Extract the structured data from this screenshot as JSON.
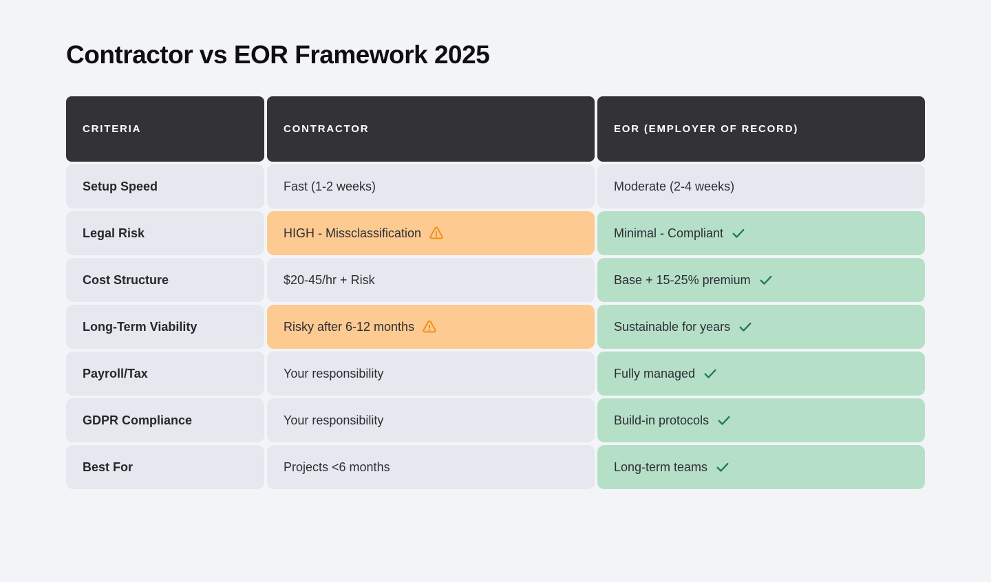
{
  "page": {
    "title": "Contractor vs EOR Framework 2025"
  },
  "table": {
    "columns": [
      {
        "label": "CRITERIA"
      },
      {
        "label": "CONTRACTOR"
      },
      {
        "label": "EOR (EMPLOYER OF RECORD)"
      }
    ],
    "rows": [
      {
        "criteria": "Setup Speed",
        "contractor": {
          "text": "Fast (1-2 weeks)",
          "status": "neutral"
        },
        "eor": {
          "text": "Moderate (2-4 weeks)",
          "status": "neutral"
        }
      },
      {
        "criteria": "Legal Risk",
        "contractor": {
          "text": "HIGH - Missclassification",
          "status": "warning"
        },
        "eor": {
          "text": "Minimal - Compliant",
          "status": "positive"
        }
      },
      {
        "criteria": "Cost Structure",
        "contractor": {
          "text": "$20-45/hr + Risk",
          "status": "neutral"
        },
        "eor": {
          "text": "Base + 15-25% premium",
          "status": "positive"
        }
      },
      {
        "criteria": "Long-Term Viability",
        "contractor": {
          "text": "Risky after 6-12 months",
          "status": "warning"
        },
        "eor": {
          "text": "Sustainable for years",
          "status": "positive"
        }
      },
      {
        "criteria": "Payroll/Tax",
        "contractor": {
          "text": "Your responsibility",
          "status": "neutral"
        },
        "eor": {
          "text": "Fully managed",
          "status": "positive"
        }
      },
      {
        "criteria": "GDPR Compliance",
        "contractor": {
          "text": "Your responsibility",
          "status": "neutral"
        },
        "eor": {
          "text": "Build-in protocols",
          "status": "positive"
        }
      },
      {
        "criteria": "Best For",
        "contractor": {
          "text": "Projects <6 months",
          "status": "neutral"
        },
        "eor": {
          "text": "Long-term teams",
          "status": "positive"
        }
      }
    ],
    "icons": {
      "warning": "warning-triangle-icon",
      "positive": "check-icon"
    }
  },
  "colors": {
    "page_bg": "#f3f4f8",
    "header_bg": "#333336",
    "header_text": "#ffffff",
    "cell_neutral": "#e5e8ef",
    "cell_warning": "#fdca92",
    "cell_positive": "#b6dfc8",
    "warning_icon": "#ef8e0d",
    "check_icon": "#1b7a50",
    "title": "#0f0f11"
  },
  "chart_data": {
    "type": "table",
    "title": "Contractor vs EOR Framework 2025",
    "columns": [
      "CRITERIA",
      "CONTRACTOR",
      "EOR (EMPLOYER OF RECORD)"
    ],
    "rows": [
      [
        "Setup Speed",
        "Fast (1-2 weeks)",
        "Moderate (2-4 weeks)"
      ],
      [
        "Legal Risk",
        "HIGH - Missclassification ⚠",
        "Minimal - Compliant ✓"
      ],
      [
        "Cost Structure",
        "$20-45/hr + Risk",
        "Base + 15-25% premium ✓"
      ],
      [
        "Long-Term Viability",
        "Risky after 6-12 months ⚠",
        "Sustainable for years ✓"
      ],
      [
        "Payroll/Tax",
        "Your responsibility",
        "Fully managed ✓"
      ],
      [
        "GDPR Compliance",
        "Your responsibility",
        "Build-in protocols ✓"
      ],
      [
        "Best For",
        "Projects <6 months",
        "Long-term teams ✓"
      ]
    ],
    "cell_status": {
      "contractor": [
        "neutral",
        "warning",
        "neutral",
        "warning",
        "neutral",
        "neutral",
        "neutral"
      ],
      "eor": [
        "neutral",
        "positive",
        "positive",
        "positive",
        "positive",
        "positive",
        "positive"
      ]
    },
    "legend_position": "none",
    "grid": false
  }
}
